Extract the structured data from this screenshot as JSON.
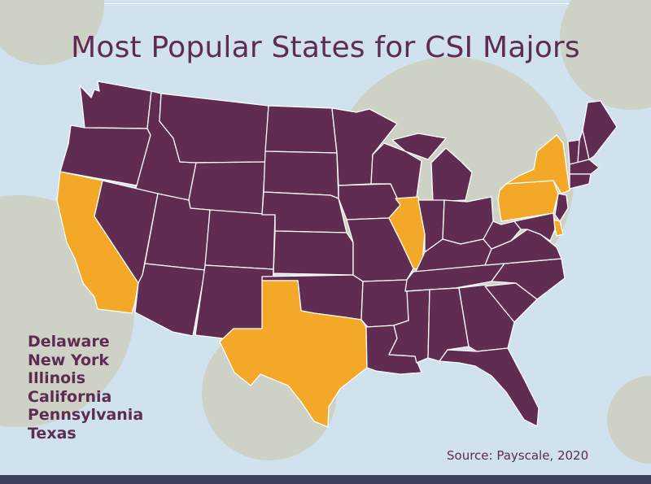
{
  "title": "Most Popular States for CSI Majors",
  "states_highlighted": [
    "Delaware",
    "New York",
    "Illinois",
    "California",
    "Pennsylvania",
    "Texas"
  ],
  "source": "Source: Payscale, 2020",
  "colors": {
    "background": "#cfe2ee",
    "decorative_circles": "#cdd1c6",
    "title": "#5e2b52",
    "state_fill": "#612c52",
    "highlight_fill": "#f3a827",
    "state_border": "#ffffff",
    "legend_text": "#5e2b52",
    "source_text": "#5e2b52",
    "bottom_bar": "#3d3f5c"
  }
}
